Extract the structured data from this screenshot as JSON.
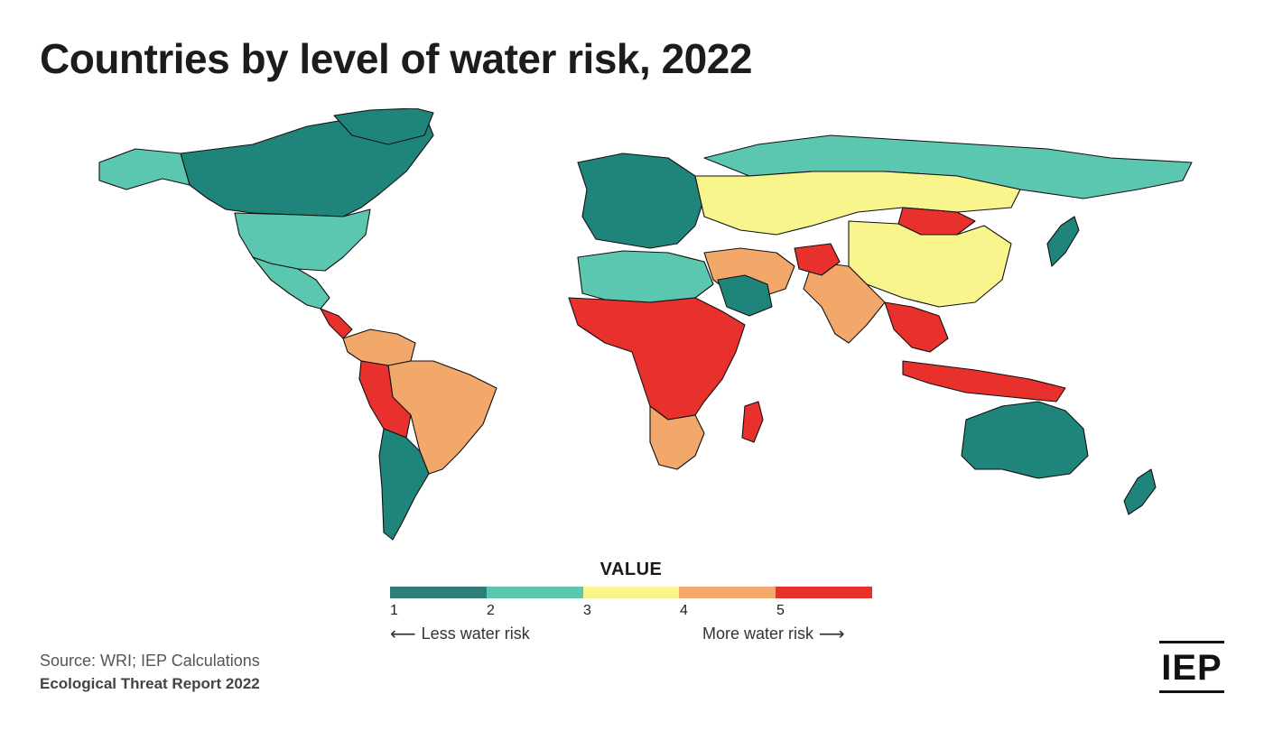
{
  "title": "Countries by level of water risk, 2022",
  "legend": {
    "title": "VALUE",
    "ticks": [
      "1",
      "2",
      "3",
      "4",
      "5"
    ],
    "colors": [
      "#2e7d77",
      "#5cc7b0",
      "#f9f58d",
      "#f2a86a",
      "#e8302c"
    ],
    "less_label": "Less water risk",
    "more_label": "More water risk"
  },
  "risk_colors": {
    "1": "#1f8479",
    "2": "#5cc7b0",
    "3": "#f9f58d",
    "4": "#f2a86a",
    "5": "#e8302c"
  },
  "map_regions": [
    {
      "name": "Canada",
      "risk": 1
    },
    {
      "name": "Alaska",
      "risk": 2
    },
    {
      "name": "Greenland",
      "risk": 1
    },
    {
      "name": "United States",
      "risk": 2
    },
    {
      "name": "Mexico",
      "risk": 2
    },
    {
      "name": "Central America",
      "risk": 5
    },
    {
      "name": "Colombia / Venezuela",
      "risk": 4
    },
    {
      "name": "Brazil",
      "risk": 4
    },
    {
      "name": "Peru / Bolivia",
      "risk": 5
    },
    {
      "name": "Argentina / Chile",
      "risk": 1
    },
    {
      "name": "Europe",
      "risk": 1
    },
    {
      "name": "North Africa",
      "risk": 2
    },
    {
      "name": "Sub-Saharan Africa",
      "risk": 5
    },
    {
      "name": "Southern Africa",
      "risk": 4
    },
    {
      "name": "Madagascar",
      "risk": 5
    },
    {
      "name": "Middle East",
      "risk": 4
    },
    {
      "name": "Saudi Arabia",
      "risk": 1
    },
    {
      "name": "Russia North",
      "risk": 2
    },
    {
      "name": "Russia South / Kazakhstan",
      "risk": 3
    },
    {
      "name": "Mongolia",
      "risk": 5
    },
    {
      "name": "China",
      "risk": 3
    },
    {
      "name": "India",
      "risk": 4
    },
    {
      "name": "Afghanistan",
      "risk": 5
    },
    {
      "name": "Southeast Asia",
      "risk": 5
    },
    {
      "name": "Indonesia",
      "risk": 5
    },
    {
      "name": "Japan",
      "risk": 1
    },
    {
      "name": "Australia",
      "risk": 1
    },
    {
      "name": "New Zealand",
      "risk": 1
    }
  ],
  "source": "Source: WRI; IEP Calculations",
  "report": "Ecological Threat Report 2022",
  "logo": "IEP"
}
